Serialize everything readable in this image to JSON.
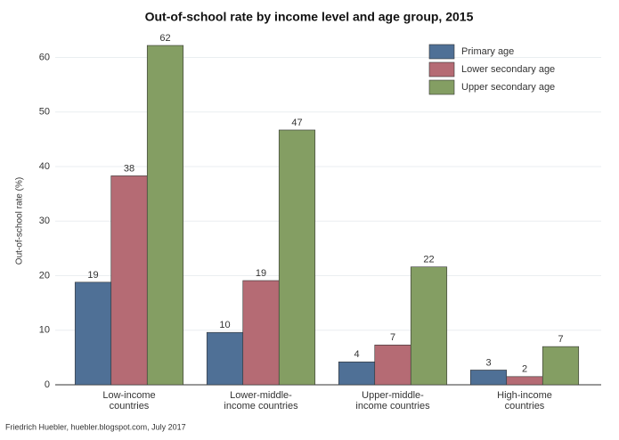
{
  "chart_data": {
    "type": "bar",
    "title": "Out-of-school rate by income level and age group, 2015",
    "y_label": "Out-of-school rate (%)",
    "caption": "Friedrich Huebler, huebler.blogspot.com, July 2017",
    "categories": [
      [
        "Low-income",
        "countries"
      ],
      [
        "Lower-middle-",
        "income countries"
      ],
      [
        "Upper-middle-",
        "income countries"
      ],
      [
        "High-income",
        "countries"
      ]
    ],
    "series": [
      {
        "name": "Primary age",
        "color": "#4f7096",
        "values": [
          18.8,
          9.6,
          4.2,
          2.7
        ],
        "value_labels": [
          "19",
          "10",
          "4",
          "3"
        ]
      },
      {
        "name": "Lower secondary age",
        "color": "#b56b74",
        "values": [
          38.3,
          19.1,
          7.3,
          1.5
        ],
        "value_labels": [
          "38",
          "19",
          "7",
          "2"
        ]
      },
      {
        "name": "Upper secondary age",
        "color": "#849e63",
        "values": [
          62.2,
          46.7,
          21.6,
          7.0
        ],
        "value_labels": [
          "62",
          "47",
          "22",
          "7"
        ]
      }
    ],
    "ylim": [
      0,
      64
    ],
    "yticks": [
      0,
      10,
      20,
      30,
      40,
      50,
      60
    ],
    "grid": true,
    "legend": "top-right"
  }
}
